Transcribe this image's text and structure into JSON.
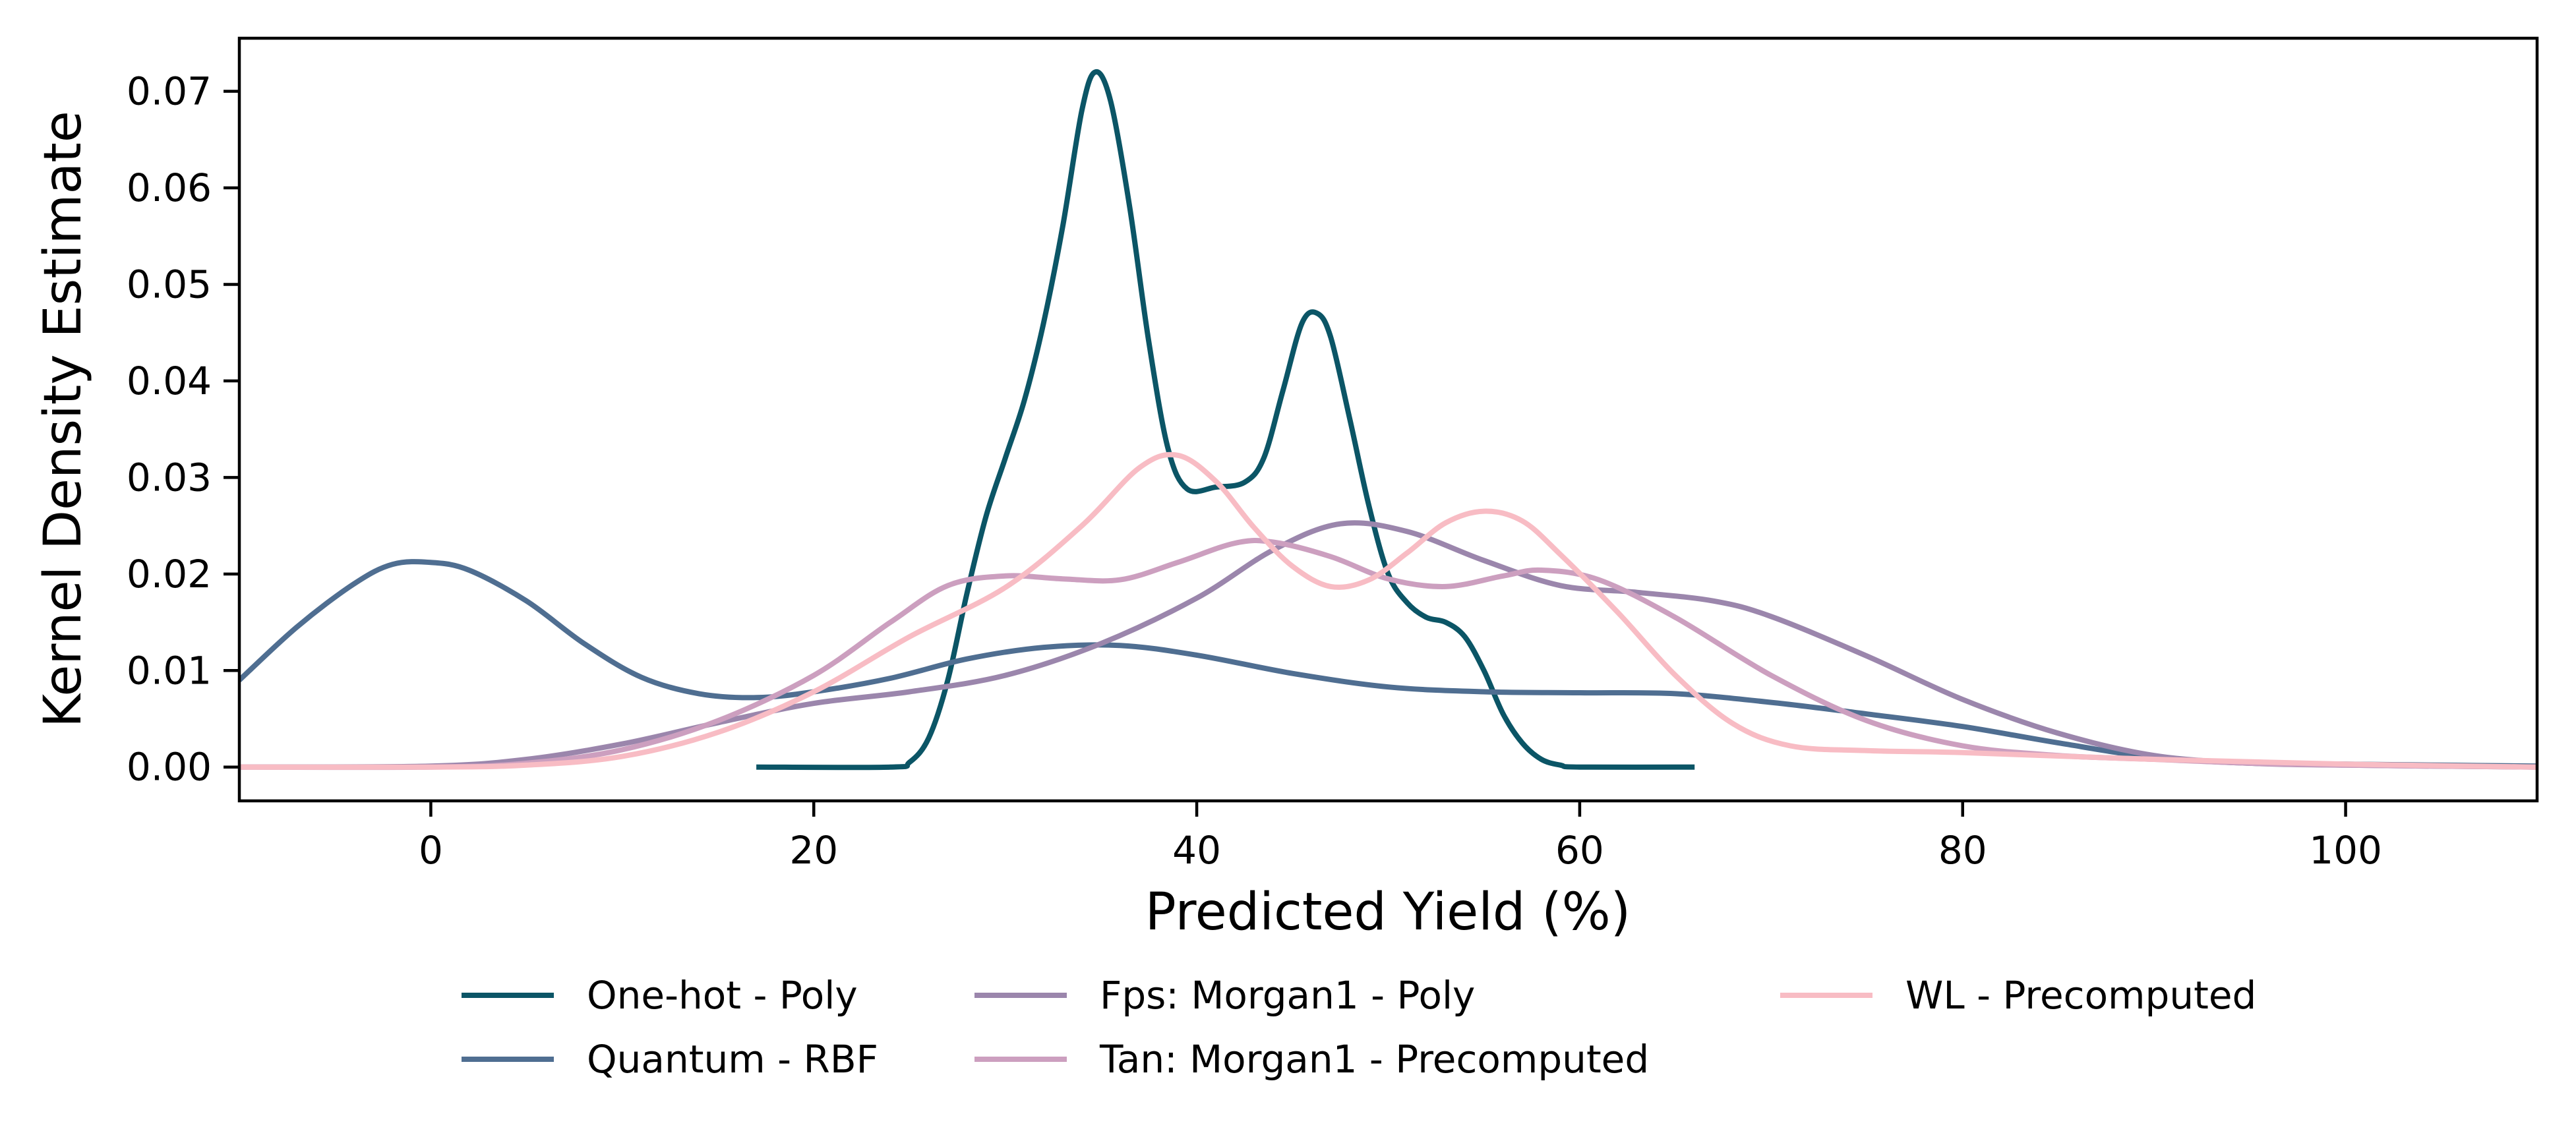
{
  "chart_data": {
    "type": "line",
    "title": "",
    "xlabel": "Predicted Yield (%)",
    "ylabel": "Kernel Density Estimate",
    "xlim": [
      -10,
      110
    ],
    "ylim": [
      -0.0035,
      0.0755
    ],
    "xticks": [
      0,
      20,
      40,
      60,
      80,
      100
    ],
    "xtick_labels": [
      "0",
      "20",
      "40",
      "60",
      "80",
      "100"
    ],
    "yticks": [
      0.0,
      0.01,
      0.02,
      0.03,
      0.04,
      0.05,
      0.06,
      0.07
    ],
    "ytick_labels": [
      "0.00",
      "0.01",
      "0.02",
      "0.03",
      "0.04",
      "0.05",
      "0.06",
      "0.07"
    ],
    "grid": false,
    "legend_position": "bottom-center, outside plot",
    "series": [
      {
        "name": "One-hot - Poly",
        "color": "#0b5566",
        "points": [
          [
            17,
            0.0
          ],
          [
            24,
            0.0
          ],
          [
            25,
            0.0005
          ],
          [
            26,
            0.003
          ],
          [
            27,
            0.009
          ],
          [
            28,
            0.018
          ],
          [
            29,
            0.026
          ],
          [
            30,
            0.032
          ],
          [
            31,
            0.038
          ],
          [
            32,
            0.046
          ],
          [
            33,
            0.056
          ],
          [
            34,
            0.068
          ],
          [
            34.7,
            0.072
          ],
          [
            35.5,
            0.069
          ],
          [
            36.5,
            0.058
          ],
          [
            37.5,
            0.044
          ],
          [
            38.5,
            0.033
          ],
          [
            39.5,
            0.0288
          ],
          [
            41,
            0.029
          ],
          [
            42.5,
            0.0295
          ],
          [
            43.5,
            0.032
          ],
          [
            44.5,
            0.039
          ],
          [
            45.5,
            0.046
          ],
          [
            46.3,
            0.047
          ],
          [
            47,
            0.0445
          ],
          [
            48,
            0.036
          ],
          [
            49,
            0.027
          ],
          [
            50,
            0.02
          ],
          [
            51,
            0.017
          ],
          [
            52,
            0.0155
          ],
          [
            53,
            0.015
          ],
          [
            54,
            0.0135
          ],
          [
            55,
            0.01
          ],
          [
            56,
            0.0055
          ],
          [
            57,
            0.0025
          ],
          [
            58,
            0.0008
          ],
          [
            59,
            0.0002
          ],
          [
            60,
            0.0
          ],
          [
            66,
            0.0
          ]
        ]
      },
      {
        "name": "Quantum - RBF",
        "color": "#4f6e91",
        "points": [
          [
            -10,
            0.009
          ],
          [
            -7,
            0.0145
          ],
          [
            -4,
            0.019
          ],
          [
            -2,
            0.021
          ],
          [
            0,
            0.0212
          ],
          [
            2,
            0.0204
          ],
          [
            5,
            0.0172
          ],
          [
            8,
            0.0128
          ],
          [
            11,
            0.0093
          ],
          [
            14,
            0.0076
          ],
          [
            17,
            0.0072
          ],
          [
            20,
            0.0078
          ],
          [
            24,
            0.0092
          ],
          [
            28,
            0.0112
          ],
          [
            32,
            0.0124
          ],
          [
            36,
            0.0126
          ],
          [
            40,
            0.0116
          ],
          [
            45,
            0.0097
          ],
          [
            50,
            0.0083
          ],
          [
            55,
            0.0078
          ],
          [
            60,
            0.0077
          ],
          [
            65,
            0.0076
          ],
          [
            70,
            0.0067
          ],
          [
            75,
            0.0055
          ],
          [
            80,
            0.0042
          ],
          [
            85,
            0.0025
          ],
          [
            90,
            0.001
          ],
          [
            95,
            0.0004
          ],
          [
            100,
            0.0003
          ],
          [
            105,
            0.0002
          ],
          [
            110,
            0.0001
          ]
        ]
      },
      {
        "name": "Fps: Morgan1 - Poly",
        "color": "#9b86ac",
        "points": [
          [
            -10,
            0.0
          ],
          [
            0,
            0.0001
          ],
          [
            5,
            0.0008
          ],
          [
            10,
            0.0024
          ],
          [
            15,
            0.0046
          ],
          [
            20,
            0.0066
          ],
          [
            25,
            0.0078
          ],
          [
            30,
            0.0095
          ],
          [
            35,
            0.0128
          ],
          [
            40,
            0.0175
          ],
          [
            44,
            0.0225
          ],
          [
            47.5,
            0.0252
          ],
          [
            51,
            0.0244
          ],
          [
            55,
            0.0214
          ],
          [
            59,
            0.0188
          ],
          [
            63,
            0.0181
          ],
          [
            67,
            0.0172
          ],
          [
            70,
            0.0156
          ],
          [
            75,
            0.0115
          ],
          [
            80,
            0.007
          ],
          [
            85,
            0.0035
          ],
          [
            90,
            0.0012
          ],
          [
            95,
            0.0004
          ],
          [
            100,
            0.0002
          ],
          [
            110,
            0.0
          ]
        ]
      },
      {
        "name": "Tan: Morgan1 - Precomputed",
        "color": "#cc9fbf",
        "points": [
          [
            -10,
            0.0
          ],
          [
            0,
            0.0
          ],
          [
            5,
            0.0004
          ],
          [
            10,
            0.0018
          ],
          [
            15,
            0.0048
          ],
          [
            20,
            0.0095
          ],
          [
            24,
            0.015
          ],
          [
            27,
            0.0188
          ],
          [
            30,
            0.0198
          ],
          [
            33,
            0.0195
          ],
          [
            36,
            0.0194
          ],
          [
            39,
            0.0212
          ],
          [
            42,
            0.0232
          ],
          [
            44,
            0.0233
          ],
          [
            47,
            0.0218
          ],
          [
            50,
            0.0195
          ],
          [
            53,
            0.0187
          ],
          [
            56,
            0.0198
          ],
          [
            58,
            0.0204
          ],
          [
            61,
            0.0194
          ],
          [
            65,
            0.0155
          ],
          [
            70,
            0.0095
          ],
          [
            75,
            0.0048
          ],
          [
            80,
            0.0022
          ],
          [
            85,
            0.0012
          ],
          [
            90,
            0.0008
          ],
          [
            95,
            0.0004
          ],
          [
            100,
            0.0002
          ],
          [
            110,
            0.0
          ]
        ]
      },
      {
        "name": "WL - Precomputed",
        "color": "#f8bcc4",
        "points": [
          [
            -10,
            0.0
          ],
          [
            0,
            0.0
          ],
          [
            5,
            0.0002
          ],
          [
            10,
            0.0011
          ],
          [
            15,
            0.0036
          ],
          [
            20,
            0.0078
          ],
          [
            25,
            0.0135
          ],
          [
            30,
            0.0186
          ],
          [
            34,
            0.025
          ],
          [
            37,
            0.031
          ],
          [
            39,
            0.0323
          ],
          [
            41,
            0.0296
          ],
          [
            43,
            0.0248
          ],
          [
            45,
            0.0208
          ],
          [
            47,
            0.0187
          ],
          [
            49,
            0.0194
          ],
          [
            51,
            0.0222
          ],
          [
            53,
            0.0253
          ],
          [
            55,
            0.0265
          ],
          [
            57,
            0.0255
          ],
          [
            59,
            0.022
          ],
          [
            62,
            0.016
          ],
          [
            65,
            0.0095
          ],
          [
            68,
            0.0045
          ],
          [
            71,
            0.0022
          ],
          [
            75,
            0.0017
          ],
          [
            80,
            0.0015
          ],
          [
            90,
            0.0008
          ],
          [
            100,
            0.0003
          ],
          [
            110,
            0.0
          ]
        ]
      }
    ]
  }
}
